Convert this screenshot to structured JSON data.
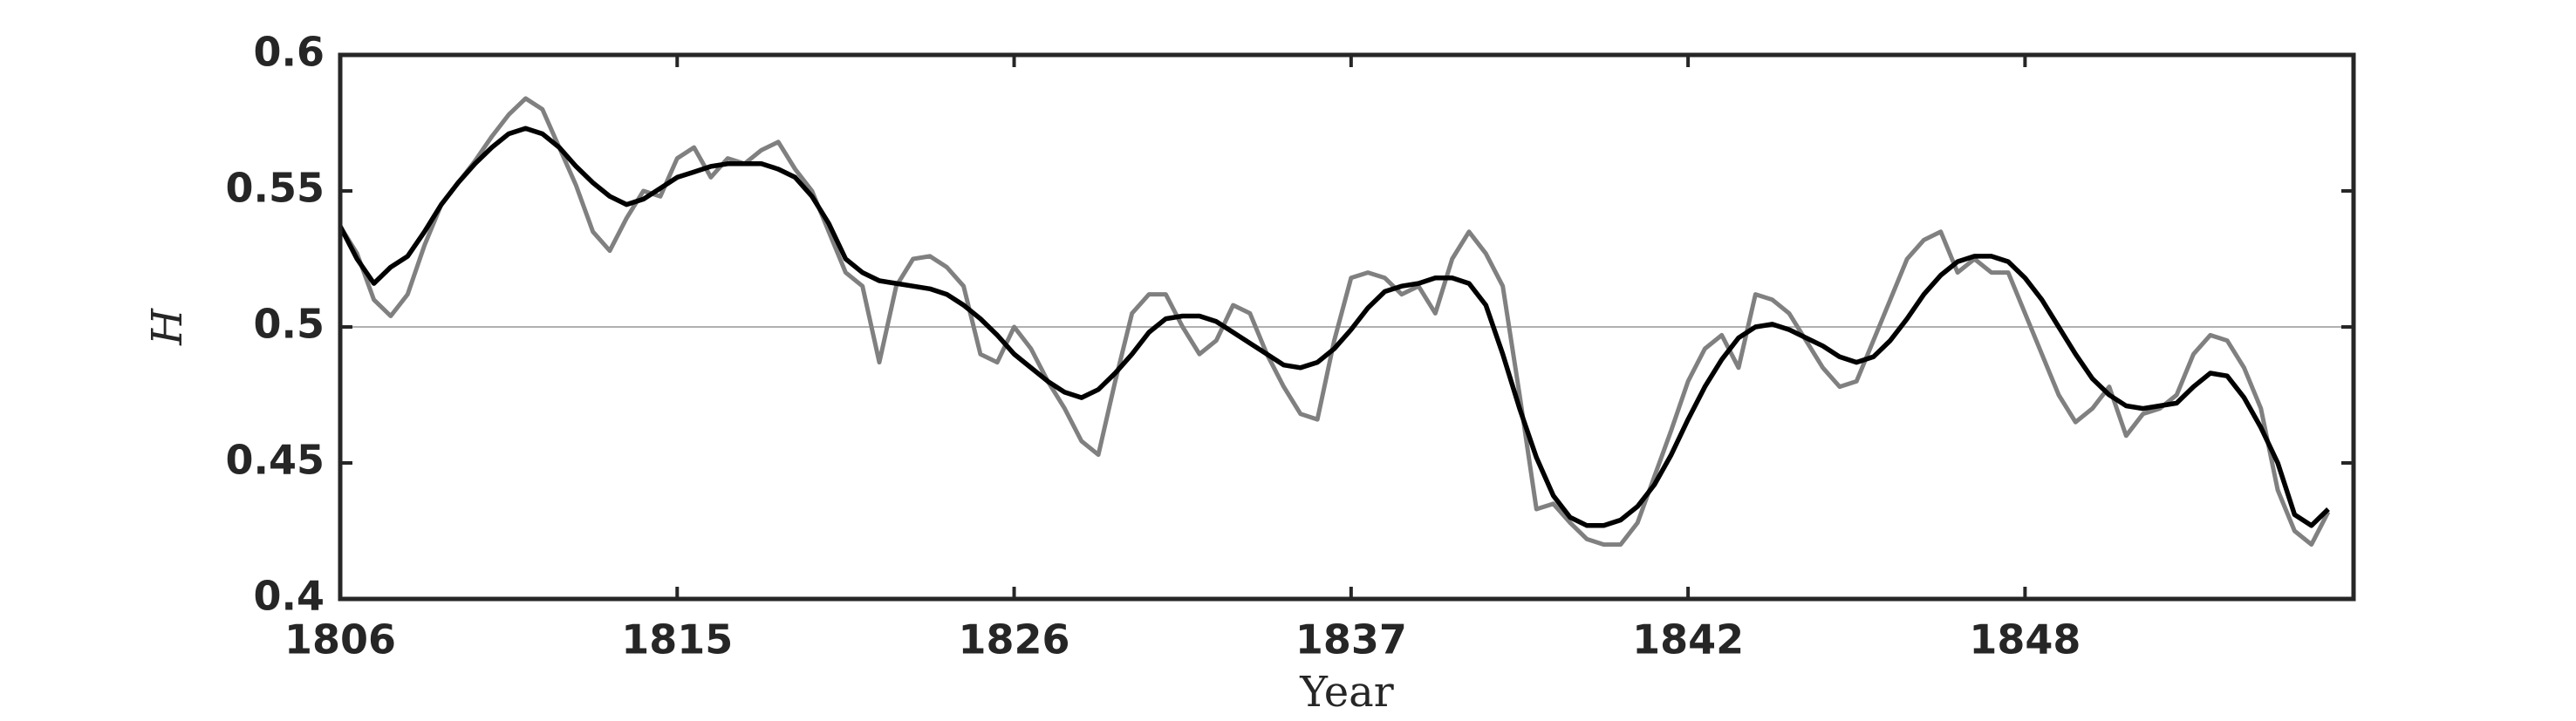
{
  "chart_data": {
    "type": "line",
    "xlabel": "Year",
    "ylabel": "H",
    "x": [
      0,
      1,
      2,
      3,
      4,
      5,
      6,
      7,
      8,
      9,
      10,
      11,
      12,
      13,
      14,
      15,
      16,
      17,
      18,
      19,
      20,
      21,
      22,
      23,
      24,
      25,
      26,
      27,
      28,
      29,
      30,
      31,
      32,
      33,
      34,
      35,
      36,
      37,
      38,
      39,
      40,
      41,
      42,
      43,
      44,
      45,
      46,
      47,
      48,
      49,
      50,
      51,
      52,
      53,
      54,
      55,
      56,
      57,
      58,
      59,
      60,
      61,
      62,
      63,
      64,
      65,
      66,
      67,
      68,
      69,
      70,
      71,
      72,
      73,
      74,
      75,
      76,
      77,
      78,
      79,
      80,
      81,
      82,
      83,
      84,
      85,
      86,
      87,
      88,
      89,
      90,
      91,
      92,
      93,
      94,
      95,
      96,
      97,
      98,
      99,
      100,
      101,
      102,
      103,
      104,
      105,
      106,
      107,
      108,
      109,
      110,
      111,
      112,
      113,
      114,
      115,
      116,
      117,
      118
    ],
    "series": [
      {
        "color": "#808080",
        "values": [
          0.537,
          0.527,
          0.51,
          0.504,
          0.512,
          0.53,
          0.545,
          0.553,
          0.561,
          0.57,
          0.578,
          0.584,
          0.58,
          0.566,
          0.552,
          0.535,
          0.528,
          0.54,
          0.55,
          0.548,
          0.562,
          0.566,
          0.555,
          0.562,
          0.56,
          0.565,
          0.568,
          0.558,
          0.55,
          0.535,
          0.52,
          0.515,
          0.487,
          0.515,
          0.525,
          0.526,
          0.522,
          0.515,
          0.49,
          0.487,
          0.5,
          0.492,
          0.48,
          0.47,
          0.458,
          0.453,
          0.48,
          0.505,
          0.512,
          0.512,
          0.5,
          0.49,
          0.495,
          0.508,
          0.505,
          0.49,
          0.478,
          0.468,
          0.466,
          0.495,
          0.518,
          0.52,
          0.518,
          0.512,
          0.515,
          0.505,
          0.525,
          0.535,
          0.527,
          0.515,
          0.475,
          0.433,
          0.435,
          0.428,
          0.422,
          0.42,
          0.42,
          0.428,
          0.445,
          0.462,
          0.48,
          0.492,
          0.497,
          0.485,
          0.512,
          0.51,
          0.505,
          0.495,
          0.485,
          0.478,
          0.48,
          0.495,
          0.51,
          0.525,
          0.532,
          0.535,
          0.52,
          0.525,
          0.52,
          0.52,
          0.505,
          0.49,
          0.475,
          0.465,
          0.47,
          0.478,
          0.46,
          0.468,
          0.47,
          0.475,
          0.49,
          0.497,
          0.495,
          0.485,
          0.47,
          0.44,
          0.425,
          0.42,
          0.432
        ]
      },
      {
        "color": "#000000",
        "values": [
          0.537,
          0.525,
          0.516,
          0.522,
          0.526,
          0.535,
          0.545,
          0.553,
          0.56,
          0.566,
          0.571,
          0.573,
          0.571,
          0.566,
          0.559,
          0.553,
          0.548,
          0.545,
          0.547,
          0.551,
          0.555,
          0.557,
          0.559,
          0.56,
          0.56,
          0.56,
          0.558,
          0.555,
          0.548,
          0.538,
          0.525,
          0.52,
          0.517,
          0.516,
          0.515,
          0.514,
          0.512,
          0.508,
          0.503,
          0.497,
          0.49,
          0.485,
          0.48,
          0.476,
          0.474,
          0.477,
          0.483,
          0.49,
          0.498,
          0.503,
          0.504,
          0.504,
          0.502,
          0.498,
          0.494,
          0.49,
          0.486,
          0.485,
          0.487,
          0.492,
          0.499,
          0.507,
          0.513,
          0.515,
          0.516,
          0.518,
          0.518,
          0.516,
          0.508,
          0.49,
          0.47,
          0.452,
          0.438,
          0.43,
          0.427,
          0.427,
          0.429,
          0.434,
          0.442,
          0.453,
          0.466,
          0.478,
          0.488,
          0.496,
          0.5,
          0.501,
          0.499,
          0.496,
          0.493,
          0.489,
          0.487,
          0.489,
          0.495,
          0.503,
          0.512,
          0.519,
          0.524,
          0.526,
          0.526,
          0.524,
          0.518,
          0.51,
          0.5,
          0.49,
          0.481,
          0.475,
          0.471,
          0.47,
          0.471,
          0.472,
          0.478,
          0.483,
          0.482,
          0.474,
          0.463,
          0.45,
          0.431,
          0.427,
          0.433
        ]
      }
    ],
    "hline": 0.5,
    "xlim": [
      0,
      119.5
    ],
    "xticks": [
      {
        "value": 0,
        "label": "1806"
      },
      {
        "value": 20,
        "label": "1815"
      },
      {
        "value": 40,
        "label": "1826"
      },
      {
        "value": 60,
        "label": "1837"
      },
      {
        "value": 80,
        "label": "1842"
      },
      {
        "value": 100,
        "label": "1848"
      }
    ],
    "ylim": [
      0.4,
      0.6
    ],
    "yticks": [
      0.4,
      0.45,
      0.5,
      0.55,
      0.6
    ]
  }
}
